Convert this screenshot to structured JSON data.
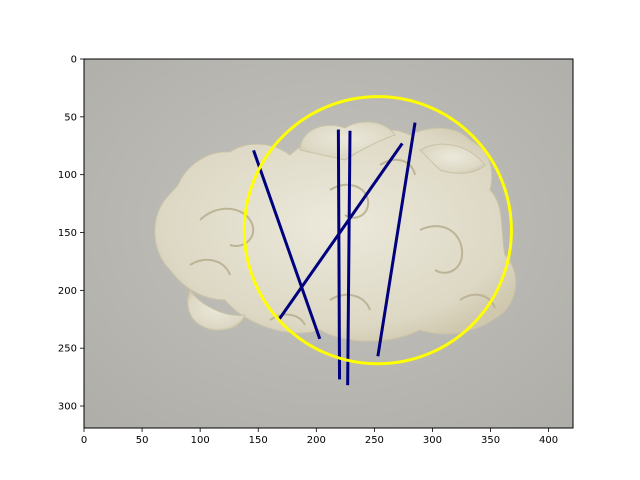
{
  "chart_data": {
    "type": "scatter",
    "description_kind": "image-plot-with-overlays",
    "title": "",
    "xlabel": "",
    "ylabel": "",
    "xlim": [
      0,
      421
    ],
    "ylim": [
      319,
      0
    ],
    "y_inverted": true,
    "grid": false,
    "x_ticks": [
      0,
      50,
      100,
      150,
      200,
      250,
      300,
      350,
      400
    ],
    "y_ticks": [
      0,
      50,
      100,
      150,
      200,
      250,
      300
    ],
    "background_image": {
      "subject": "white jade carved dragon pendant on grey background",
      "background_color": "#b9b8b3",
      "object_color": "#e6e2d2"
    },
    "circle": {
      "center": [
        253,
        148
      ],
      "radius": 115,
      "color": "#ffff00"
    },
    "line_segments": {
      "color": "#00007f",
      "segments": [
        {
          "x": [
            146,
            203
          ],
          "y": [
            79,
            242
          ]
        },
        {
          "x": [
            168,
            274
          ],
          "y": [
            225,
            73
          ]
        },
        {
          "x": [
            219,
            220
          ],
          "y": [
            61,
            277
          ]
        },
        {
          "x": [
            229,
            227
          ],
          "y": [
            62,
            282
          ]
        },
        {
          "x": [
            285,
            253
          ],
          "y": [
            55,
            257
          ]
        }
      ]
    }
  }
}
